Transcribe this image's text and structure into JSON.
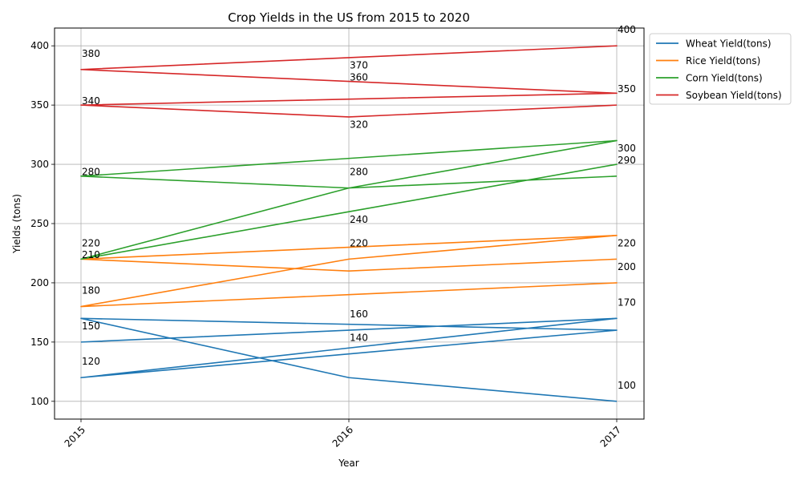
{
  "chart_data": {
    "type": "line",
    "title": "Crop Yields in the US from 2015 to 2020",
    "xlabel": "Year",
    "ylabel": "Yields (tons)",
    "x_ticks": [
      "2015",
      "2016",
      "2017"
    ],
    "y_ticks": [
      100,
      150,
      200,
      250,
      300,
      350,
      400
    ],
    "xlim": [
      2015,
      2017
    ],
    "ylim": [
      85,
      415
    ],
    "grid": true,
    "legend_position": "outside-top-right",
    "series": [
      {
        "name": "Wheat Yield(tons)",
        "color": "#1f77b4",
        "x": [
          "2015",
          "2016",
          "2017",
          "2015",
          "2016",
          "2017",
          "2015",
          "2016",
          "2017"
        ],
        "values": [
          150,
          160,
          170,
          120,
          140,
          160,
          170,
          120,
          100
        ]
      },
      {
        "name": "Rice Yield(tons)",
        "color": "#ff7f0e",
        "x": [
          "2015",
          "2016",
          "2017",
          "2015",
          "2016",
          "2017",
          "2015",
          "2016",
          "2017"
        ],
        "values": [
          180,
          190,
          200,
          180,
          220,
          240,
          220,
          210,
          220
        ]
      },
      {
        "name": "Corn Yield(tons)",
        "color": "#2ca02c",
        "x": [
          "2015",
          "2016",
          "2017",
          "2015",
          "2016",
          "2017",
          "2015",
          "2016",
          "2017"
        ],
        "values": [
          220,
          260,
          300,
          220,
          280,
          320,
          290,
          280,
          290
        ]
      },
      {
        "name": "Soybean Yield(tons)",
        "color": "#d62728",
        "x": [
          "2015",
          "2016",
          "2017",
          "2015",
          "2016",
          "2017",
          "2015",
          "2016",
          "2017"
        ],
        "values": [
          380,
          390,
          400,
          380,
          370,
          360,
          350,
          340,
          350
        ]
      }
    ],
    "data_labels": [
      {
        "x": "2015",
        "y": 380,
        "text": "380"
      },
      {
        "x": "2015",
        "y": 340,
        "text": "340"
      },
      {
        "x": "2015",
        "y": 280,
        "text": "280"
      },
      {
        "x": "2015",
        "y": 220,
        "text": "220"
      },
      {
        "x": "2015",
        "y": 210,
        "text": "210"
      },
      {
        "x": "2015",
        "y": 180,
        "text": "180"
      },
      {
        "x": "2015",
        "y": 150,
        "text": "150"
      },
      {
        "x": "2015",
        "y": 120,
        "text": "120"
      },
      {
        "x": "2016",
        "y": 370,
        "text": "370"
      },
      {
        "x": "2016",
        "y": 360,
        "text": "360"
      },
      {
        "x": "2016",
        "y": 320,
        "text": "320"
      },
      {
        "x": "2016",
        "y": 280,
        "text": "280"
      },
      {
        "x": "2016",
        "y": 240,
        "text": "240"
      },
      {
        "x": "2016",
        "y": 220,
        "text": "220"
      },
      {
        "x": "2016",
        "y": 160,
        "text": "160"
      },
      {
        "x": "2016",
        "y": 140,
        "text": "140"
      },
      {
        "x": "2017",
        "y": 400,
        "text": "400"
      },
      {
        "x": "2017",
        "y": 350,
        "text": "350"
      },
      {
        "x": "2017",
        "y": 300,
        "text": "300"
      },
      {
        "x": "2017",
        "y": 290,
        "text": "290"
      },
      {
        "x": "2017",
        "y": 220,
        "text": "220"
      },
      {
        "x": "2017",
        "y": 200,
        "text": "200"
      },
      {
        "x": "2017",
        "y": 170,
        "text": "170"
      },
      {
        "x": "2017",
        "y": 100,
        "text": "100"
      }
    ]
  }
}
